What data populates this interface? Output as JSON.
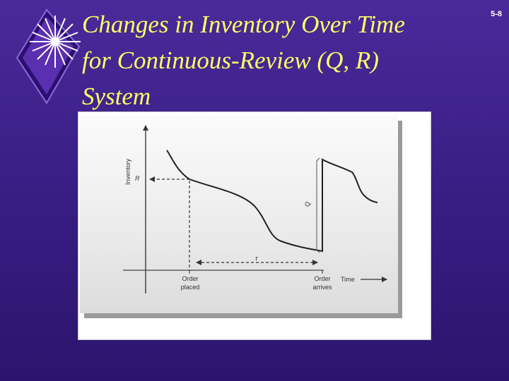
{
  "header": {
    "title_lines": [
      "Changes in Inventory Over Time",
      "for Continuous-Review (Q, R)",
      "System"
    ],
    "slide_number": "5-8"
  },
  "diagram": {
    "y_axis_label": "Inventory",
    "x_axis_label": "Time",
    "reorder_point_label": "R",
    "lead_time_label": "τ",
    "order_quantity_label": "Q",
    "order_placed_label": [
      "Order",
      "placed"
    ],
    "order_arrives_label": [
      "Order",
      "arrives"
    ]
  },
  "colors": {
    "background": "#3a1f86",
    "title": "#ffff66",
    "logo_diamond": "#5a2fb0",
    "figure_panel": "#ececec"
  }
}
